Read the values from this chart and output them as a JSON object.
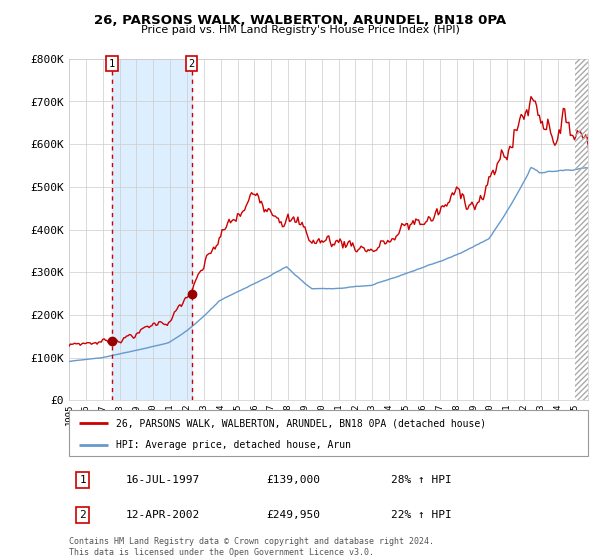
{
  "title": "26, PARSONS WALK, WALBERTON, ARUNDEL, BN18 0PA",
  "subtitle": "Price paid vs. HM Land Registry's House Price Index (HPI)",
  "y_ticks": [
    0,
    100000,
    200000,
    300000,
    400000,
    500000,
    600000,
    700000,
    800000
  ],
  "y_tick_labels": [
    "£0",
    "£100K",
    "£200K",
    "£300K",
    "£400K",
    "£500K",
    "£600K",
    "£700K",
    "£800K"
  ],
  "purchase_1_date": "16-JUL-1997",
  "purchase_1_price": 139000,
  "purchase_1_hpi_pct": "28%",
  "purchase_2_date": "12-APR-2002",
  "purchase_2_price": 249950,
  "purchase_2_hpi_pct": "22%",
  "purchase_1_x": 1997.54,
  "purchase_2_x": 2002.28,
  "red_line_color": "#cc0000",
  "blue_line_color": "#6699cc",
  "shading_color": "#ddeeff",
  "dashed_line_color": "#cc0000",
  "background_color": "#ffffff",
  "grid_color": "#cccccc",
  "legend_label_red": "26, PARSONS WALK, WALBERTON, ARUNDEL, BN18 0PA (detached house)",
  "legend_label_blue": "HPI: Average price, detached house, Arun",
  "footer": "Contains HM Land Registry data © Crown copyright and database right 2024.\nThis data is licensed under the Open Government Licence v3.0.",
  "x_tick_years": [
    1995,
    1996,
    1997,
    1998,
    1999,
    2000,
    2001,
    2002,
    2003,
    2004,
    2005,
    2006,
    2007,
    2008,
    2009,
    2010,
    2011,
    2012,
    2013,
    2014,
    2015,
    2016,
    2017,
    2018,
    2019,
    2020,
    2021,
    2022,
    2023,
    2024,
    2025
  ]
}
